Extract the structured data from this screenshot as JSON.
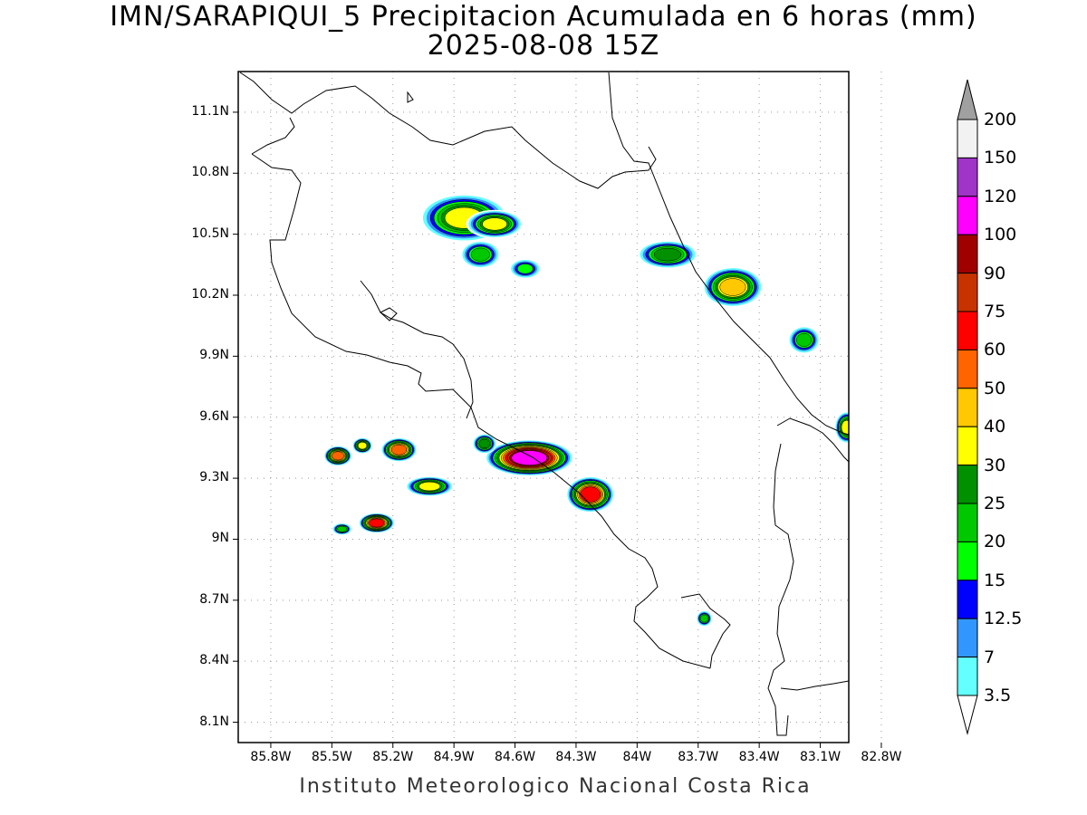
{
  "title": "IMN/SARAPIQUI_5 Precipitacion Acumulada en 6 horas (mm)",
  "subtitle": "2025-08-08 15Z",
  "credit": "Instituto Meteorologico Nacional Costa Rica",
  "lat_ticks": [
    "11.1N",
    "10.8N",
    "10.5N",
    "10.2N",
    "9.9N",
    "9.6N",
    "9.3N",
    "9N",
    "8.7N",
    "8.4N",
    "8.1N"
  ],
  "lon_ticks": [
    "85.8W",
    "85.5W",
    "85.2W",
    "84.9W",
    "84.6W",
    "84.3W",
    "84W",
    "83.7W",
    "83.4W",
    "83.1W",
    "82.8W"
  ],
  "colorbar": {
    "labels": [
      "200",
      "150",
      "120",
      "100",
      "90",
      "75",
      "60",
      "50",
      "40",
      "30",
      "25",
      "20",
      "15",
      "12.5",
      "7",
      "3.5"
    ],
    "colors": [
      "#f2f2f2",
      "#a033c8",
      "#ff00ff",
      "#a00000",
      "#c83200",
      "#ff0000",
      "#ff6400",
      "#ffc800",
      "#ffff00",
      "#009000",
      "#00c800",
      "#00ff00",
      "#0000ff",
      "#3296ff",
      "#64ffff",
      "#ffffff"
    ]
  },
  "chart_data": {
    "type": "heatmap",
    "title": "IMN/SARAPIQUI_5 Precipitacion Acumulada en 6 horas (mm)",
    "subtitle": "2025-08-08 15Z",
    "variable": "Precipitacion Acumulada en 6 horas",
    "units": "mm",
    "lat_range": [
      8.0,
      11.3
    ],
    "lon_range": [
      -85.96,
      -82.96
    ],
    "grid": true,
    "legend_placement": "right",
    "levels": [
      3.5,
      7,
      12.5,
      15,
      20,
      25,
      30,
      40,
      50,
      60,
      75,
      90,
      100,
      120,
      150,
      200
    ],
    "cells": [
      {
        "lon": -84.85,
        "lat": 10.58,
        "rx": 0.22,
        "ry": 0.12,
        "max": 40
      },
      {
        "lon": -84.7,
        "lat": 10.55,
        "rx": 0.14,
        "ry": 0.07,
        "max": 40
      },
      {
        "lon": -84.77,
        "lat": 10.4,
        "rx": 0.1,
        "ry": 0.07,
        "max": 25
      },
      {
        "lon": -84.55,
        "lat": 10.33,
        "rx": 0.08,
        "ry": 0.05,
        "max": 20
      },
      {
        "lon": -83.85,
        "lat": 10.4,
        "rx": 0.15,
        "ry": 0.07,
        "max": 30
      },
      {
        "lon": -83.53,
        "lat": 10.24,
        "rx": 0.15,
        "ry": 0.1,
        "max": 50
      },
      {
        "lon": -83.18,
        "lat": 9.98,
        "rx": 0.08,
        "ry": 0.07,
        "max": 25
      },
      {
        "lon": -82.97,
        "lat": 9.55,
        "rx": 0.06,
        "ry": 0.08,
        "max": 40
      },
      {
        "lon": -85.47,
        "lat": 9.41,
        "rx": 0.07,
        "ry": 0.05,
        "max": 60
      },
      {
        "lon": -85.35,
        "lat": 9.46,
        "rx": 0.05,
        "ry": 0.04,
        "max": 40
      },
      {
        "lon": -85.17,
        "lat": 9.44,
        "rx": 0.09,
        "ry": 0.06,
        "max": 60
      },
      {
        "lon": -85.02,
        "lat": 9.26,
        "rx": 0.12,
        "ry": 0.05,
        "max": 40
      },
      {
        "lon": -85.28,
        "lat": 9.08,
        "rx": 0.09,
        "ry": 0.05,
        "max": 75
      },
      {
        "lon": -85.45,
        "lat": 9.05,
        "rx": 0.05,
        "ry": 0.03,
        "max": 25
      },
      {
        "lon": -84.53,
        "lat": 9.4,
        "rx": 0.22,
        "ry": 0.09,
        "max": 120
      },
      {
        "lon": -84.23,
        "lat": 9.22,
        "rx": 0.12,
        "ry": 0.09,
        "max": 75
      },
      {
        "lon": -84.75,
        "lat": 9.47,
        "rx": 0.06,
        "ry": 0.05,
        "max": 30
      },
      {
        "lon": -83.67,
        "lat": 8.61,
        "rx": 0.04,
        "ry": 0.04,
        "max": 25
      }
    ]
  }
}
